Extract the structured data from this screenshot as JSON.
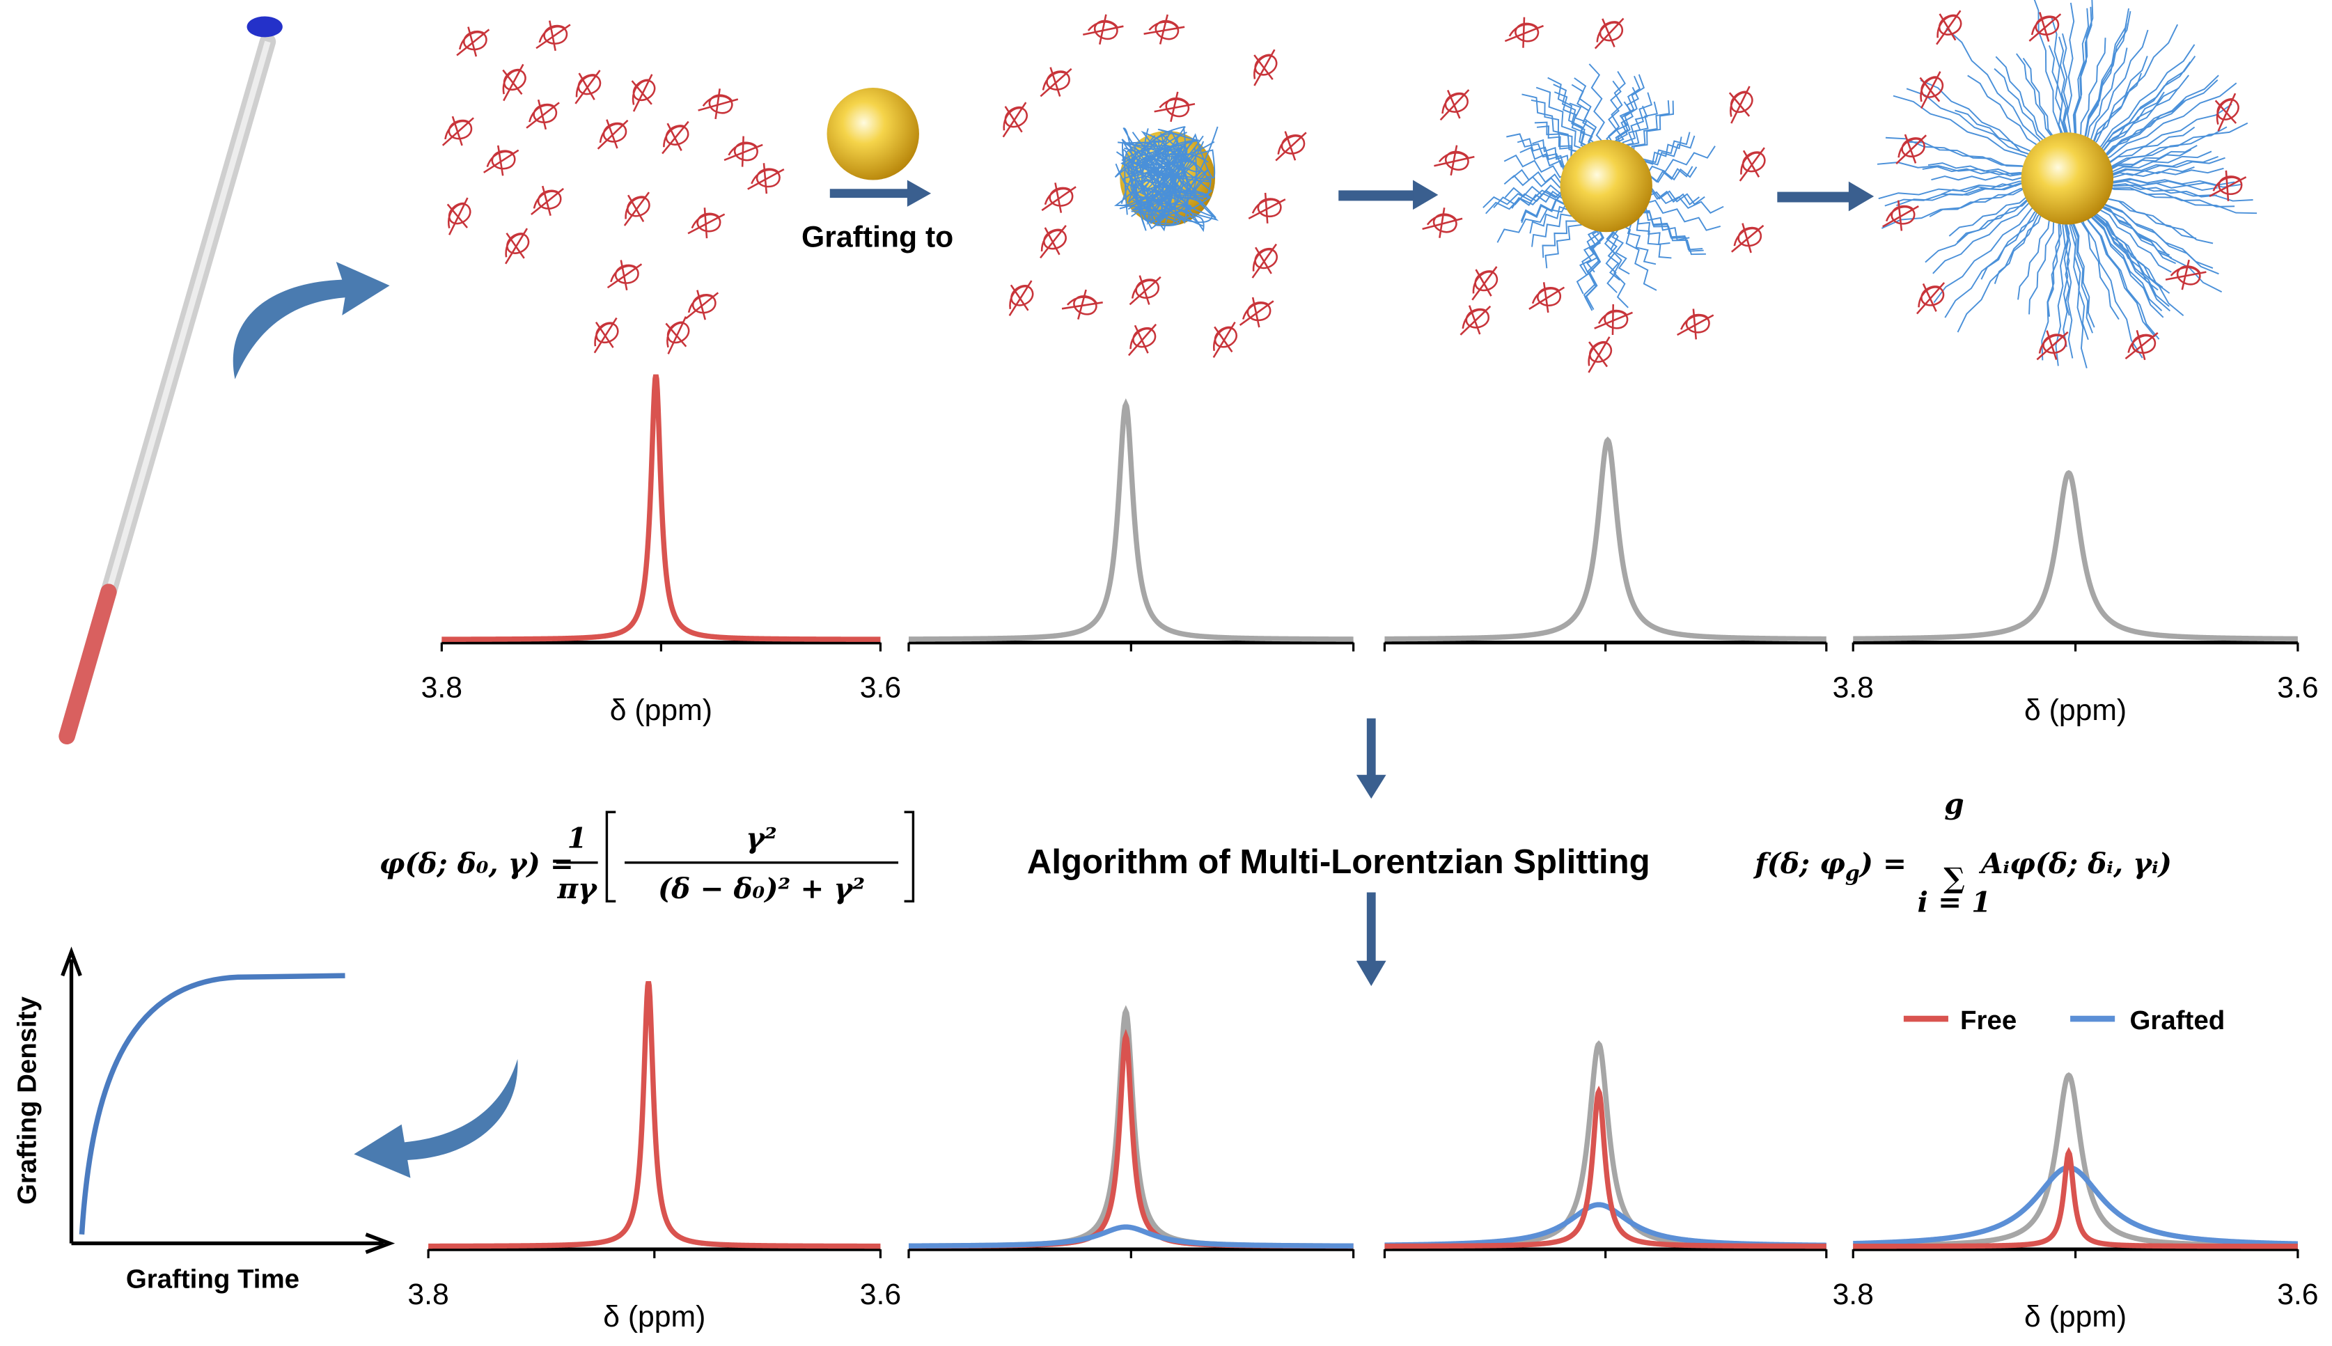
{
  "labels": {
    "grafting_to": "Grafting to",
    "algorithm": "Algorithm of Multi-Lorentzian Splitting"
  },
  "top_axes": [
    {
      "left_tick": "3.8",
      "right_tick": "3.6",
      "label": "δ (ppm)"
    },
    {
      "left_tick": "3.8",
      "right_tick": "3.6",
      "label": "δ (ppm)"
    }
  ],
  "bottom_axes": [
    {
      "left_tick": "3.8",
      "right_tick": "3.6",
      "label": "δ (ppm)"
    },
    {
      "left_tick": "3.8",
      "right_tick": "3.6",
      "label": "δ (ppm)"
    }
  ],
  "legend": [
    "Free",
    "Grafted"
  ],
  "inset": {
    "y_label": "Grafting Density",
    "x_label": "Grafting Time"
  },
  "formula_left": {
    "lhs": "φ(δ; δ₀, γ) =",
    "frac1_num": "1",
    "frac1_den": "πγ",
    "frac2_num": "γ²",
    "frac2_den": "(δ − δ₀)² + γ²"
  },
  "formula_right": {
    "lhs": [
      "f(δ; φ",
      "g",
      ") ="
    ],
    "sum": "∑",
    "sum_top": "g",
    "sum_bottom": "i = 1",
    "term": "Aᵢφ(δ; δᵢ, γᵢ)"
  }
}
